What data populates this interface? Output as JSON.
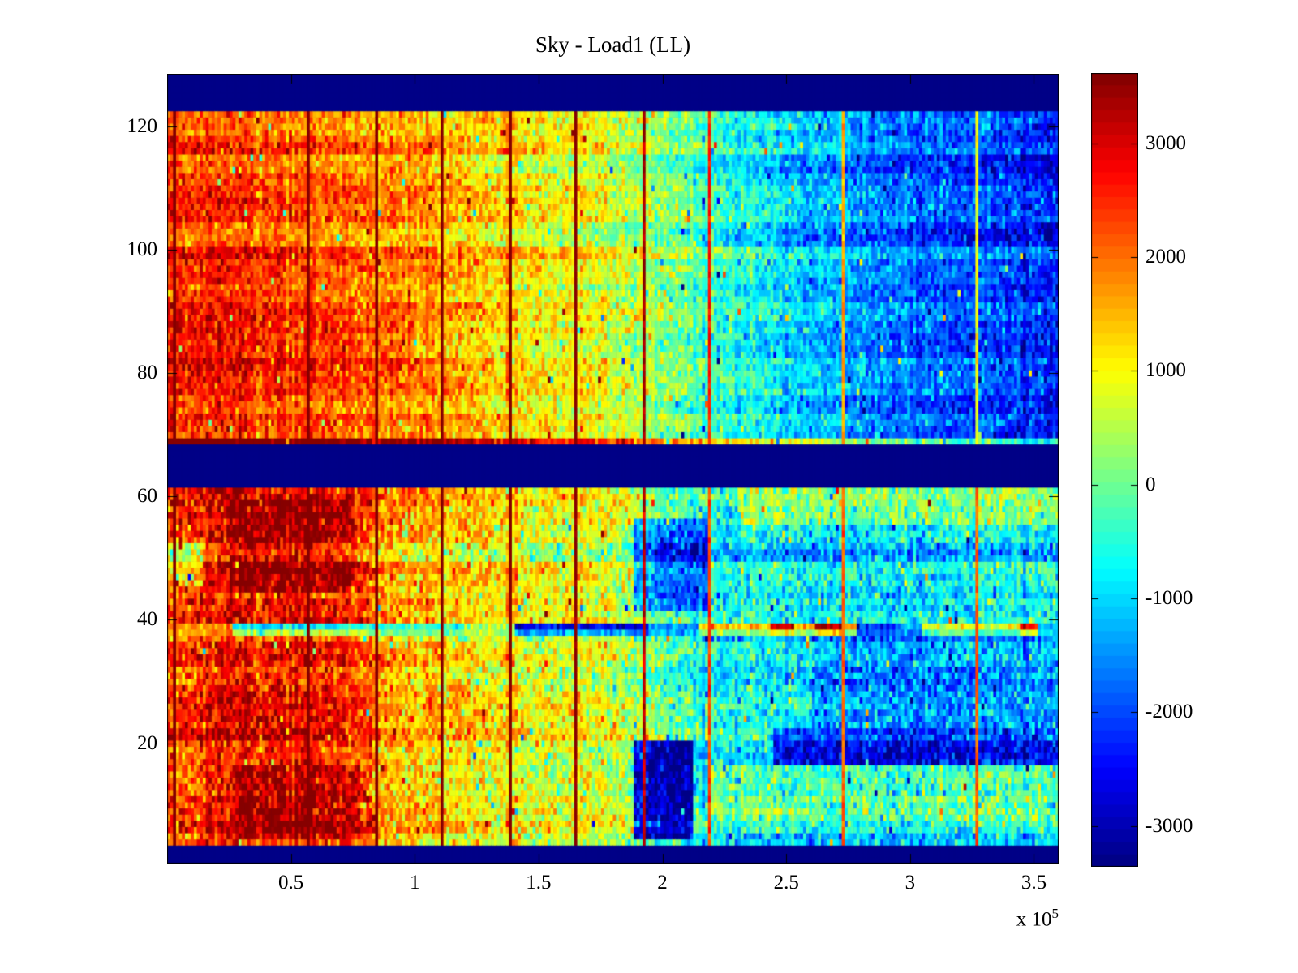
{
  "figure": {
    "title": "Sky - Load1 (LL)",
    "background_color": "#ffffff",
    "axis_color": "#000000"
  },
  "axes": {
    "x": {
      "range": [
        0,
        360000
      ],
      "ticks": [
        {
          "v": 50000,
          "label": "0.5"
        },
        {
          "v": 100000,
          "label": "1"
        },
        {
          "v": 150000,
          "label": "1.5"
        },
        {
          "v": 200000,
          "label": "2"
        },
        {
          "v": 250000,
          "label": "2.5"
        },
        {
          "v": 300000,
          "label": "3"
        },
        {
          "v": 350000,
          "label": "3.5"
        }
      ],
      "exponent_prefix": "x 10",
      "exponent": "5"
    },
    "y": {
      "range": [
        0.5,
        128.5
      ],
      "ticks": [
        {
          "v": 120,
          "label": "120"
        },
        {
          "v": 100,
          "label": "100"
        },
        {
          "v": 80,
          "label": "80"
        },
        {
          "v": 60,
          "label": "60"
        },
        {
          "v": 40,
          "label": "40"
        },
        {
          "v": 20,
          "label": "20"
        }
      ]
    }
  },
  "colorbar": {
    "clim": [
      -3360,
      3620
    ],
    "levels": 64,
    "ticks": [
      {
        "v": 3000,
        "label": "3000"
      },
      {
        "v": 2000,
        "label": "2000"
      },
      {
        "v": 1000,
        "label": "1000"
      },
      {
        "v": 0,
        "label": "0"
      },
      {
        "v": -1000,
        "label": "-1000"
      },
      {
        "v": -2000,
        "label": "-2000"
      },
      {
        "v": -3000,
        "label": "-3000"
      }
    ]
  },
  "chart_data": {
    "type": "heatmap",
    "title": "Sky - Load1 (LL)",
    "xlabel": "",
    "ylabel": "",
    "x_range": [
      0,
      360000
    ],
    "x_axis_multiplier": 100000,
    "y_range": [
      0.5,
      128.5
    ],
    "rows": 128,
    "cols": 300,
    "clim": [
      -3360,
      3620
    ],
    "colormap": "jet",
    "levels": 64,
    "grid": false,
    "legend": "colorbar-right",
    "seed": 20771,
    "masked_value_color": "#000087",
    "masked_row_bands": [
      [
        1,
        3
      ],
      [
        62,
        68
      ],
      [
        123,
        128
      ]
    ],
    "blocks": [
      {
        "name": "upper",
        "row_start": 69,
        "row_end": 122,
        "base_profile": [
          [
            0,
            2500
          ],
          [
            30000,
            2400
          ],
          [
            60000,
            2200
          ],
          [
            90000,
            1900
          ],
          [
            120000,
            1500
          ],
          [
            150000,
            1100
          ],
          [
            180000,
            700
          ],
          [
            200000,
            300
          ],
          [
            220000,
            -300
          ],
          [
            250000,
            -900
          ],
          [
            280000,
            -1400
          ],
          [
            310000,
            -1800
          ],
          [
            340000,
            -2100
          ],
          [
            360000,
            -2300
          ]
        ],
        "noise_sigma": 430,
        "row_sigma": 260
      },
      {
        "name": "lower",
        "row_start": 4,
        "row_end": 61,
        "base_profile": [
          [
            0,
            2200
          ],
          [
            25000,
            2700
          ],
          [
            55000,
            2700
          ],
          [
            80000,
            2300
          ],
          [
            90000,
            1500
          ],
          [
            110000,
            1300
          ],
          [
            140000,
            1000
          ],
          [
            170000,
            800
          ],
          [
            190000,
            400
          ],
          [
            205000,
            -400
          ],
          [
            230000,
            -700
          ],
          [
            260000,
            -800
          ],
          [
            300000,
            -900
          ],
          [
            330000,
            -800
          ],
          [
            360000,
            -700
          ]
        ],
        "noise_sigma": 520,
        "row_sigma": 320
      }
    ],
    "features": [
      {
        "rows": [
          45,
          59
        ],
        "x": [
          25000,
          75000
        ],
        "dv": 650
      },
      {
        "rows": [
          5,
          16
        ],
        "x": [
          28000,
          78000
        ],
        "dv": 750
      },
      {
        "rows": [
          5,
          20
        ],
        "x": [
          188000,
          212000
        ],
        "dv": -2700
      },
      {
        "rows": [
          42,
          56
        ],
        "x": [
          188000,
          218000
        ],
        "dv": -1500
      },
      {
        "rows": [
          17,
          22
        ],
        "x": [
          245000,
          360000
        ],
        "dv": -1600
      },
      {
        "rows": [
          23,
          30
        ],
        "x": [
          260000,
          360000
        ],
        "dv": -700
      },
      {
        "rows": [
          31,
          37
        ],
        "x": [
          260000,
          360000
        ],
        "dv": -500
      },
      {
        "rows": [
          8,
          16
        ],
        "x": [
          220000,
          360000
        ],
        "dv": 800
      },
      {
        "rows": [
          56,
          61
        ],
        "x": [
          230000,
          360000
        ],
        "dv": 800
      },
      {
        "rows": [
          119,
          122
        ],
        "x": [
          0,
          120000
        ],
        "dv": -450
      },
      {
        "rows": [
          81,
          88
        ],
        "x": [
          0,
          100000
        ],
        "dv": 350
      },
      {
        "rows": [
          69,
          69
        ],
        "x": [
          0,
          360000
        ],
        "dv": 1800
      },
      {
        "rows": [
          46,
          52
        ],
        "x": [
          0,
          14000
        ],
        "dv": -1200
      }
    ],
    "stripe": {
      "rows": [
        38,
        39
      ],
      "blend_row38": 0.45,
      "noise_sigma": 350,
      "segments": [
        [
          0,
          27000,
          1600
        ],
        [
          27000,
          60000,
          -900
        ],
        [
          60000,
          120000,
          -600
        ],
        [
          120000,
          140000,
          400
        ],
        [
          140000,
          195000,
          -2600
        ],
        [
          195000,
          215000,
          -1500
        ],
        [
          215000,
          244000,
          1500
        ],
        [
          244000,
          253000,
          2900
        ],
        [
          253000,
          262000,
          1400
        ],
        [
          262000,
          272000,
          3300
        ],
        [
          272000,
          278000,
          1700
        ],
        [
          278000,
          295000,
          -2300
        ],
        [
          295000,
          305000,
          -1200
        ],
        [
          305000,
          345000,
          800
        ],
        [
          345000,
          352000,
          2800
        ],
        [
          352000,
          360000,
          -1100
        ]
      ]
    },
    "vertical_lines": {
      "x": [
        3000,
        30000,
        57500,
        84500,
        111500,
        138500,
        165500,
        192500,
        219000,
        246000,
        273000,
        300000,
        327000,
        354000
      ],
      "dv": 2900,
      "sigma": 220
    },
    "outliers": {
      "probability": 0.012,
      "amplitude": 1800
    }
  }
}
